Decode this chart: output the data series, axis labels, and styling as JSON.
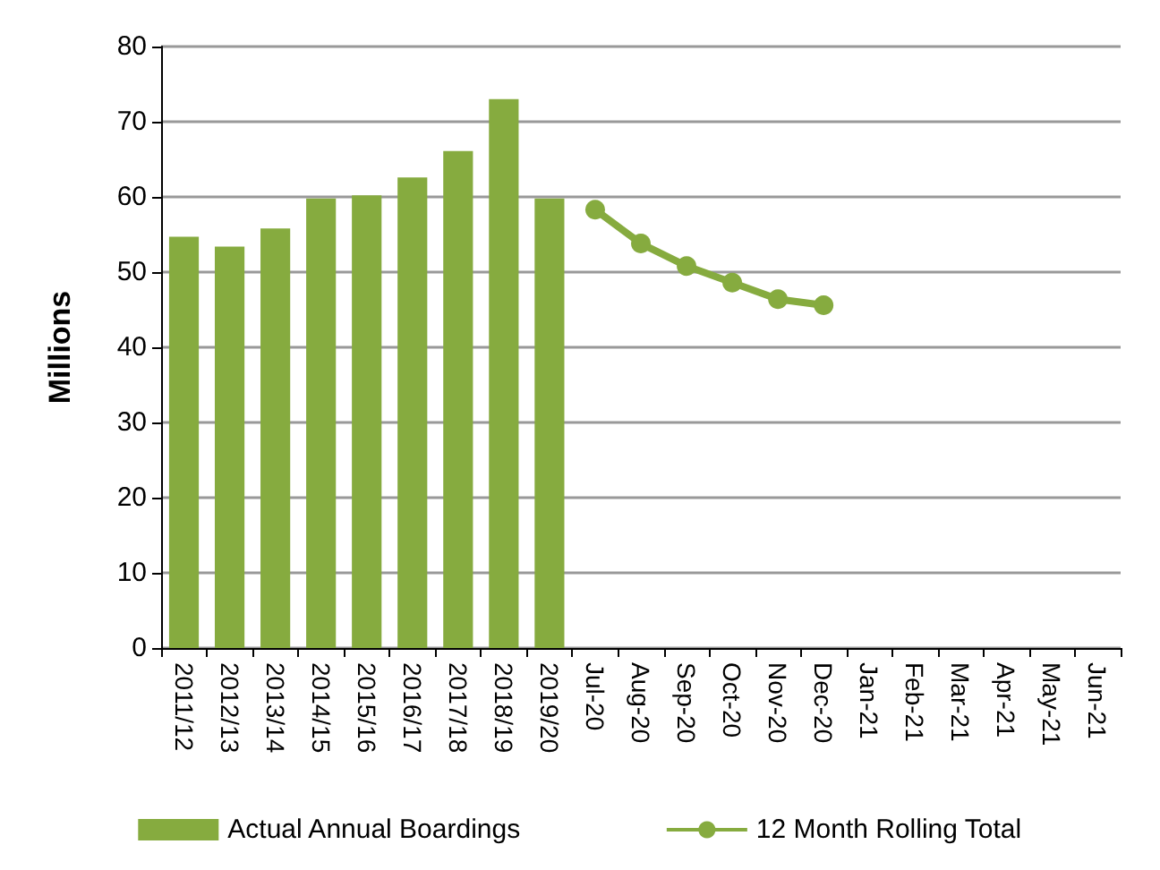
{
  "chart_data": {
    "type": "bar",
    "ylabel": "Millions",
    "categories": [
      "2011/12",
      "2012/13",
      "2013/14",
      "2014/15",
      "2015/16",
      "2016/17",
      "2017/18",
      "2018/19",
      "2019/20",
      "Jul-20",
      "Aug-20",
      "Sep-20",
      "Oct-20",
      "Nov-20",
      "Dec-20",
      "Jan-21",
      "Feb-21",
      "Mar-21",
      "Apr-21",
      "May-21",
      "Jun-21"
    ],
    "series": [
      {
        "name": "Actual Annual Boardings",
        "color": "#86ab3f",
        "values": [
          54.7,
          53.4,
          55.8,
          59.8,
          60.2,
          62.6,
          66.1,
          73.0,
          59.8,
          null,
          null,
          null,
          null,
          null,
          null,
          null,
          null,
          null,
          null,
          null,
          null
        ]
      },
      {
        "name": "12 Month Rolling Total",
        "type": "line",
        "color": "#86ab3f",
        "marker": "circle",
        "values": [
          null,
          null,
          null,
          null,
          null,
          null,
          null,
          null,
          null,
          58.3,
          53.8,
          50.8,
          48.6,
          46.4,
          45.6,
          null,
          null,
          null,
          null,
          null,
          null
        ]
      }
    ],
    "ylim": [
      0,
      80
    ],
    "yticks": [
      0,
      10,
      20,
      30,
      40,
      50,
      60,
      70,
      80
    ],
    "grid": "y",
    "legend": "bottom"
  }
}
